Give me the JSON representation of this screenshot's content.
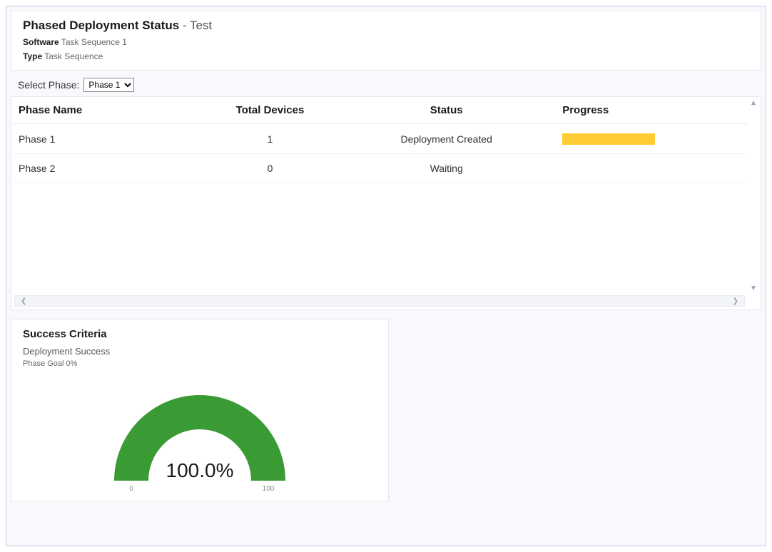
{
  "header": {
    "title_main": "Phased Deployment Status",
    "title_suffix": " - Test",
    "software_label": "Software",
    "software_value": "Task Sequence 1",
    "type_label": "Type",
    "type_value": "Task Sequence"
  },
  "phase_select": {
    "label": "Select Phase:",
    "selected": "Phase 1",
    "options": [
      "Phase 1",
      "Phase 2"
    ]
  },
  "table": {
    "columns": {
      "name": "Phase Name",
      "devices": "Total Devices",
      "status": "Status",
      "progress": "Progress"
    },
    "col_widths": {
      "name": "26%",
      "devices": "18%",
      "status": "30%",
      "progress": "26%"
    },
    "rows": [
      {
        "name": "Phase 1",
        "devices": "1",
        "status": "Deployment Created",
        "progress_color": "#ffcc33",
        "show_progress": true
      },
      {
        "name": "Phase 2",
        "devices": "0",
        "status": "Waiting",
        "progress_color": "",
        "show_progress": false
      }
    ]
  },
  "criteria": {
    "title": "Success Criteria",
    "subtitle": "Deployment Success",
    "goal_text": "Phase Goal 0%",
    "gauge": {
      "type": "gauge-half",
      "value_percent": 100.0,
      "center_text": "100.0%",
      "min_label": "0",
      "max_label": "100",
      "arc_color": "#3a9b35",
      "background_color": "#ffffff",
      "arc_outer_radius": 120,
      "arc_inner_radius": 72,
      "tick_fontsize": 10,
      "center_fontsize": 28
    }
  },
  "colors": {
    "frame_border": "#c5cfe0",
    "card_border": "#e4e8ee",
    "page_bg": "#f7f9fc",
    "text_primary": "#1a1a1a",
    "text_secondary": "#555555"
  }
}
